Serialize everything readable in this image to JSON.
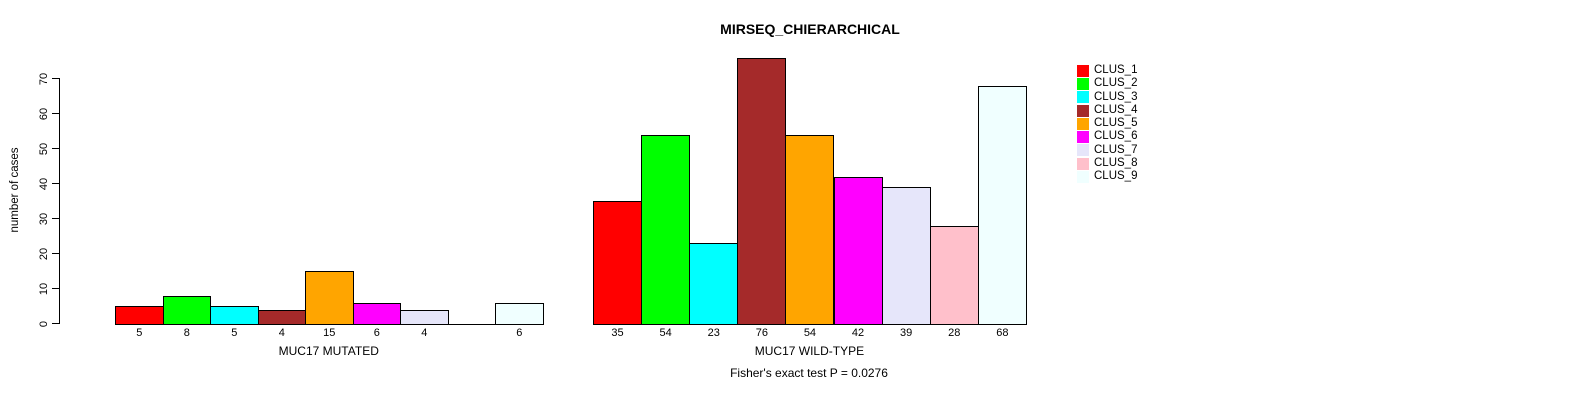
{
  "chart_data": {
    "type": "bar",
    "title": "MIRSEQ_CHIERARCHICAL",
    "ylabel": "number of cases",
    "ylim": [
      0,
      70
    ],
    "yticks": [
      0,
      10,
      20,
      30,
      40,
      50,
      60,
      70
    ],
    "grid": false,
    "legend_position": "right",
    "legend": [
      "CLUS_1",
      "CLUS_2",
      "CLUS_3",
      "CLUS_4",
      "CLUS_5",
      "CLUS_6",
      "CLUS_7",
      "CLUS_8",
      "CLUS_9"
    ],
    "colors": [
      "#ff0000",
      "#00ff00",
      "#00ffff",
      "#a52a2a",
      "#ffa500",
      "#ff00ff",
      "#e6e6fa",
      "#ffc0cb",
      "#f0ffff"
    ],
    "bar_border_color": "#000000",
    "groups": [
      {
        "label": "MUC17 MUTATED",
        "values": [
          5,
          8,
          5,
          4,
          15,
          6,
          4,
          0,
          6
        ],
        "bar_labels": [
          "5",
          "8",
          "5",
          "4",
          "15",
          "6",
          "4",
          "",
          "6"
        ]
      },
      {
        "label": "MUC17 WILD-TYPE",
        "values": [
          35,
          54,
          23,
          76,
          54,
          42,
          39,
          28,
          68
        ],
        "bar_labels": [
          "35",
          "54",
          "23",
          "76",
          "54",
          "42",
          "39",
          "28",
          "68"
        ]
      }
    ],
    "annotation": "Fisher's exact test P = 0.0276"
  }
}
